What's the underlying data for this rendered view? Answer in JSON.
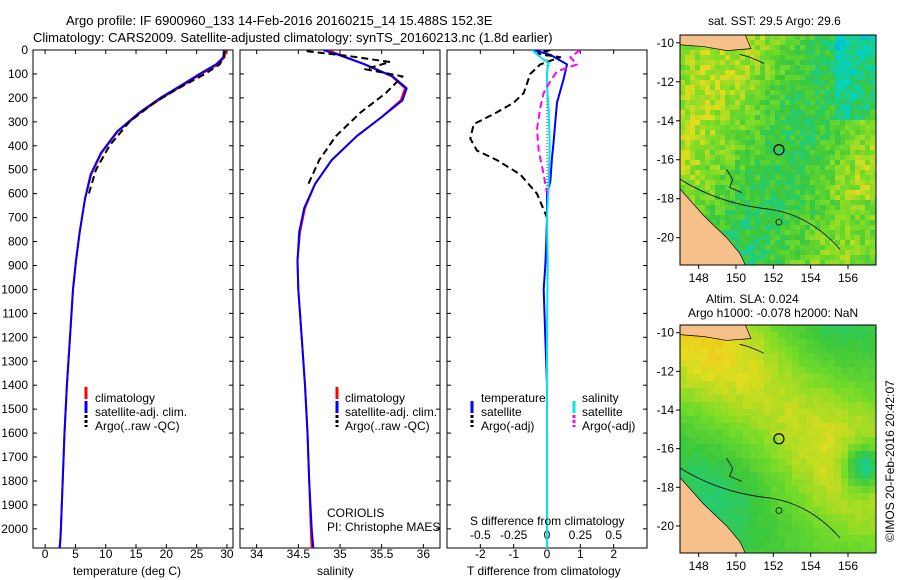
{
  "header": {
    "line1": "Argo profile: IF 6900960_133 14-Feb-2016 20160215_14 15.488S 152.3E",
    "line2": "Climatology: CARS2009. Satellite-adjusted climatology: synTS_20160213.nc (1.8d earlier)"
  },
  "colors": {
    "climatology": "#ff0000",
    "satellite": "#0000ff",
    "argo": "#000000",
    "sat_salinity": "#00e5ee",
    "argo_salinity_adj": "#ff00ff",
    "land": "#f5c08a"
  },
  "panels": {
    "temperature": {
      "xlabel": "temperature (deg C)",
      "legend": [
        "climatology",
        "satellite-adj. clim.",
        "Argo(..raw -QC)"
      ]
    },
    "salinity": {
      "xlabel": "salinity",
      "legend": [
        "climatology",
        "satellite-adj. clim.",
        "Argo(..raw -QC)"
      ],
      "note1": "CORIOLIS",
      "note2": "PI: Christophe MAES"
    },
    "difference": {
      "xlabel_top": "S difference from climatology",
      "xlabel_bottom": "T difference from climatology",
      "legend_temp_title": "temperature",
      "legend_sal_title": "salinity",
      "legend_temp_items": [
        "satellite",
        "Argo(-adj)"
      ],
      "legend_sal_items": [
        "satellite",
        "Argo(-adj)"
      ]
    }
  },
  "maps": {
    "sst_title": "sat. SST: 29.5 Argo: 29.6",
    "sla_title1": "Altim. SLA: 0.024",
    "sla_title2": "Argo h1000: -0.078 h2000: NaN",
    "lat_ticks": [
      "-10",
      "-12",
      "-14",
      "-16",
      "-18",
      "-20"
    ],
    "lon_ticks": [
      "148",
      "150",
      "152",
      "154",
      "156"
    ],
    "float_position": {
      "lat": -15.488,
      "lon": 152.3
    }
  },
  "footer": {
    "stamp": "©IMOS 20-Feb-2016 20:42:07"
  },
  "chart_data": [
    {
      "type": "line",
      "title": "",
      "xlabel": "temperature (deg C)",
      "ylabel": "",
      "xlim": [
        -2,
        31
      ],
      "ylim": [
        2080,
        0
      ],
      "x_ticks": [
        0,
        5,
        10,
        15,
        20,
        25,
        30
      ],
      "y_ticks": [
        0,
        100,
        200,
        300,
        400,
        500,
        600,
        700,
        800,
        900,
        1000,
        1100,
        1200,
        1300,
        1400,
        1500,
        1600,
        1700,
        1800,
        1900,
        2000
      ],
      "series": [
        {
          "name": "climatology",
          "color": "#ff0000",
          "dash": "solid",
          "x": [
            29.8,
            29.6,
            28.5,
            25.8,
            22.6,
            19.3,
            15.8,
            12.0,
            9.3,
            7.6,
            6.6,
            5.7,
            5.1,
            4.6,
            4.1,
            3.6,
            3.2,
            2.9,
            2.6,
            2.5,
            2.35
          ],
          "y": [
            0,
            30,
            60,
            100,
            150,
            200,
            260,
            340,
            430,
            520,
            620,
            760,
            880,
            1000,
            1200,
            1400,
            1600,
            1800,
            2000,
            2050,
            2080
          ]
        },
        {
          "name": "satellite-adj. clim.",
          "color": "#0000ff",
          "dash": "solid",
          "x": [
            29.5,
            29.4,
            28.2,
            25.5,
            22.3,
            19.0,
            15.6,
            11.9,
            9.2,
            7.5,
            6.6,
            5.7,
            5.1,
            4.6,
            4.1,
            3.6,
            3.2,
            2.9,
            2.6,
            2.5,
            2.4
          ],
          "y": [
            0,
            30,
            60,
            100,
            150,
            200,
            260,
            340,
            430,
            520,
            620,
            760,
            880,
            1000,
            1200,
            1400,
            1600,
            1800,
            2000,
            2050,
            2080
          ]
        },
        {
          "name": "Argo(..raw -QC)",
          "color": "#000000",
          "dash": "dashed",
          "x": [
            29.6,
            29.5,
            28.8,
            26.4,
            22.0,
            18.0,
            13.9,
            10.6,
            8.4,
            7.2
          ],
          "y": [
            5,
            30,
            60,
            100,
            160,
            220,
            300,
            400,
            500,
            600
          ]
        }
      ]
    },
    {
      "type": "line",
      "title": "",
      "xlabel": "salinity",
      "ylabel": "",
      "xlim": [
        33.8,
        36.2
      ],
      "ylim": [
        2080,
        0
      ],
      "x_ticks": [
        34,
        34.5,
        35,
        35.5,
        36
      ],
      "series": [
        {
          "name": "climatology",
          "color": "#ff0000",
          "dash": "solid",
          "x": [
            34.85,
            35.0,
            35.3,
            35.62,
            35.78,
            35.73,
            35.5,
            35.2,
            34.9,
            34.7,
            34.58,
            34.52,
            34.49,
            34.5,
            34.54,
            34.58,
            34.61,
            34.63,
            34.65,
            34.66
          ],
          "y": [
            0,
            20,
            60,
            110,
            160,
            210,
            280,
            360,
            460,
            560,
            660,
            760,
            880,
            1000,
            1200,
            1400,
            1600,
            1800,
            2000,
            2080
          ]
        },
        {
          "name": "satellite-adj. clim.",
          "color": "#0000ff",
          "dash": "solid",
          "x": [
            34.8,
            34.98,
            35.3,
            35.63,
            35.8,
            35.75,
            35.5,
            35.2,
            34.9,
            34.7,
            34.57,
            34.51,
            34.49,
            34.5,
            34.54,
            34.58,
            34.61,
            34.63,
            34.66,
            34.68
          ],
          "y": [
            0,
            20,
            60,
            110,
            160,
            210,
            280,
            360,
            460,
            560,
            660,
            760,
            880,
            1000,
            1200,
            1400,
            1600,
            1800,
            2000,
            2080
          ]
        },
        {
          "name": "Argo(..raw -QC)",
          "color": "#000000",
          "dash": "dashed",
          "x": [
            34.6,
            35.1,
            35.6,
            35.3,
            35.75,
            35.55,
            35.25,
            34.95,
            34.75,
            34.62
          ],
          "y": [
            5,
            25,
            50,
            80,
            110,
            180,
            260,
            360,
            460,
            560
          ]
        }
      ]
    },
    {
      "type": "line",
      "title": "",
      "xlabel": "T difference from climatology",
      "ylabel": "",
      "xlim": [
        -3,
        3
      ],
      "ylim": [
        2080,
        0
      ],
      "x_ticks": [
        -2,
        -1,
        0,
        1,
        2
      ],
      "top_axis_label": "S difference from climatology",
      "top_ticks": [
        -0.5,
        -0.25,
        0,
        0.25,
        0.5
      ],
      "series": [
        {
          "name": "satellite (temperature)",
          "color": "#0000ff",
          "dash": "solid",
          "x": [
            -0.4,
            0.1,
            0.6,
            0.5,
            0.3,
            0.25,
            0.2,
            0.15,
            0.1,
            0.0,
            0.0,
            -0.02,
            -0.05,
            -0.1,
            -0.05,
            0.0,
            0.0,
            0.0,
            0.0
          ],
          "y": [
            0,
            20,
            60,
            120,
            220,
            300,
            380,
            450,
            550,
            600,
            700,
            800,
            900,
            1000,
            1200,
            1400,
            1600,
            1800,
            2080
          ]
        },
        {
          "name": "Argo(-adj) (temperature)",
          "color": "#000000",
          "dash": "dashed",
          "x": [
            0.1,
            -0.3,
            0.4,
            -0.2,
            -0.5,
            -0.6,
            -0.7,
            -1.0,
            -1.5,
            -2.2,
            -2.3,
            -2.1,
            -1.5,
            -0.8,
            -0.3,
            0.0
          ],
          "y": [
            0,
            15,
            30,
            60,
            100,
            140,
            180,
            220,
            260,
            310,
            370,
            420,
            460,
            520,
            600,
            700
          ]
        },
        {
          "name": "satellite (salinity)",
          "color": "#00e5ee",
          "dash": "solid",
          "x": [
            -0.45,
            -0.2,
            0.05,
            0.0,
            0.0,
            0.05,
            0.08,
            0.05,
            0.0,
            0.02,
            0.0,
            0.0,
            0.0,
            0.0
          ],
          "y": [
            0,
            30,
            55,
            90,
            150,
            250,
            400,
            550,
            700,
            900,
            1200,
            1500,
            1800,
            2080
          ]
        },
        {
          "name": "Argo(-adj) (salinity)",
          "color": "#ff00ff",
          "dash": "dashed",
          "x": [
            1.0,
            0.7,
            0.9,
            0.3,
            0.1,
            -0.1,
            -0.2,
            -0.3,
            -0.25,
            -0.1,
            0.0
          ],
          "y": [
            0,
            30,
            60,
            90,
            130,
            180,
            240,
            330,
            420,
            520,
            600
          ]
        }
      ]
    },
    {
      "type": "heatmap",
      "title": "sat. SST: 29.5 Argo: 29.6",
      "xlim": [
        147,
        157.5
      ],
      "ylim": [
        -21.4,
        -9.6
      ],
      "x_ticks": [
        148,
        150,
        152,
        154,
        156
      ],
      "y_ticks": [
        -10,
        -12,
        -14,
        -16,
        -18,
        -20
      ],
      "value_description": "SST field (green ~29.5, yellow/orange warmer, cyan/blue cooler)"
    },
    {
      "type": "heatmap",
      "title": "Altim. SLA: 0.024",
      "xlim": [
        147,
        157.5
      ],
      "ylim": [
        -21.4,
        -9.6
      ],
      "x_ticks": [
        148,
        150,
        152,
        154,
        156
      ],
      "y_ticks": [
        -10,
        -12,
        -14,
        -16,
        -18,
        -20
      ],
      "value_description": "SLA field (green ~0.02, yellow higher, cyan lower)"
    }
  ]
}
